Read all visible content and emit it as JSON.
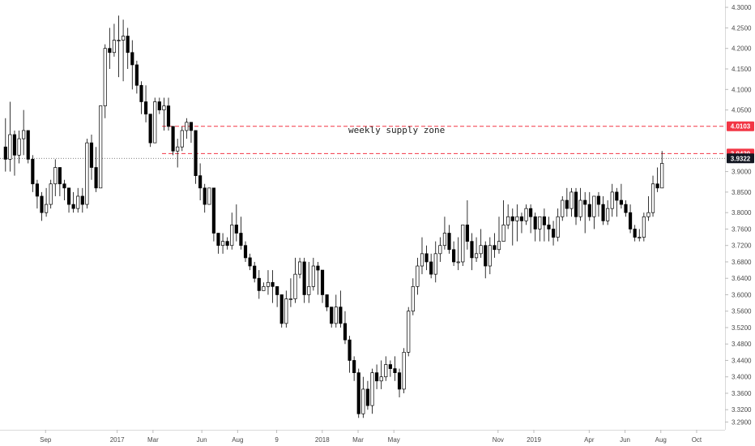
{
  "chart_data": {
    "type": "candlestick",
    "annotation": "weekly supply zone",
    "x_ticks": [
      "Sep",
      "2017",
      "Mar",
      "Jun",
      "Aug",
      "9",
      "2018",
      "Mar",
      "May",
      "Nov",
      "2019",
      "Apr",
      "Jun",
      "Aug",
      "Oct"
    ],
    "y_ticks": [
      "4.3000",
      "4.2500",
      "4.2000",
      "4.1500",
      "4.1000",
      "4.0500",
      "3.9000",
      "3.8500",
      "3.8000",
      "3.7600",
      "3.7200",
      "3.6800",
      "3.6400",
      "3.6000",
      "3.5600",
      "3.5200",
      "3.4800",
      "3.4400",
      "3.4000",
      "3.3600",
      "3.3200",
      "3.2900"
    ],
    "ylim": [
      3.275,
      4.31
    ],
    "zone_top": 4.0103,
    "zone_bottom": 3.9439,
    "last_price": 3.9322,
    "price_tags": [
      {
        "label": "4.0103",
        "value": 4.0103,
        "color": "#f23645"
      },
      {
        "label": "3.9439",
        "value": 3.9439,
        "color": "#f23645"
      },
      {
        "label": "3.9322",
        "value": 3.9322,
        "color": "#131722"
      }
    ],
    "bull_color": "#ffffff",
    "bear_color": "#000000",
    "grid": false,
    "candles": [
      [
        3.96,
        3.93,
        4.03,
        3.9
      ],
      [
        3.93,
        3.99,
        4.07,
        3.9
      ],
      [
        3.99,
        3.94,
        4.0,
        3.89
      ],
      [
        3.94,
        3.98,
        4.0,
        3.92
      ],
      [
        3.98,
        4.0,
        4.05,
        3.94
      ],
      [
        4.0,
        3.93,
        4.0,
        3.92
      ],
      [
        3.93,
        3.87,
        3.94,
        3.85
      ],
      [
        3.87,
        3.84,
        3.88,
        3.81
      ],
      [
        3.84,
        3.8,
        3.85,
        3.78
      ],
      [
        3.8,
        3.82,
        3.86,
        3.79
      ],
      [
        3.82,
        3.87,
        3.88,
        3.81
      ],
      [
        3.87,
        3.91,
        3.93,
        3.84
      ],
      [
        3.91,
        3.87,
        3.91,
        3.84
      ],
      [
        3.87,
        3.86,
        3.88,
        3.83
      ],
      [
        3.86,
        3.82,
        3.86,
        3.8
      ],
      [
        3.82,
        3.81,
        3.85,
        3.8
      ],
      [
        3.81,
        3.84,
        3.86,
        3.8
      ],
      [
        3.84,
        3.82,
        3.86,
        3.8
      ],
      [
        3.82,
        3.97,
        3.98,
        3.81
      ],
      [
        3.97,
        3.91,
        3.99,
        3.88
      ],
      [
        3.91,
        3.86,
        3.96,
        3.85
      ],
      [
        3.86,
        4.06,
        4.06,
        3.86
      ],
      [
        4.06,
        4.2,
        4.21,
        4.03
      ],
      [
        4.2,
        4.19,
        4.25,
        4.15
      ],
      [
        4.19,
        4.22,
        4.26,
        4.18
      ],
      [
        4.22,
        4.22,
        4.28,
        4.13
      ],
      [
        4.22,
        4.23,
        4.27,
        4.12
      ],
      [
        4.23,
        4.19,
        4.25,
        4.15
      ],
      [
        4.19,
        4.16,
        4.22,
        4.1
      ],
      [
        4.16,
        4.11,
        4.17,
        4.09
      ],
      [
        4.11,
        4.07,
        4.12,
        4.04
      ],
      [
        4.07,
        4.04,
        4.11,
        4.02
      ],
      [
        4.04,
        3.97,
        4.04,
        3.96
      ],
      [
        3.97,
        4.07,
        4.08,
        3.97
      ],
      [
        4.07,
        4.05,
        4.08,
        4.04
      ],
      [
        4.05,
        4.06,
        4.08,
        4.0
      ],
      [
        4.06,
        4.01,
        4.08,
        4.0
      ],
      [
        4.01,
        3.95,
        4.01,
        3.94
      ],
      [
        3.95,
        3.96,
        3.98,
        3.91
      ],
      [
        3.96,
        4.0,
        4.01,
        3.95
      ],
      [
        4.0,
        4.02,
        4.03,
        3.98
      ],
      [
        4.02,
        4.0,
        4.02,
        3.97
      ],
      [
        4.0,
        3.89,
        4.0,
        3.87
      ],
      [
        3.89,
        3.86,
        3.92,
        3.83
      ],
      [
        3.86,
        3.82,
        3.87,
        3.8
      ],
      [
        3.82,
        3.86,
        3.86,
        3.82
      ],
      [
        3.86,
        3.75,
        3.86,
        3.73
      ],
      [
        3.75,
        3.72,
        3.75,
        3.7
      ],
      [
        3.72,
        3.73,
        3.75,
        3.7
      ],
      [
        3.73,
        3.72,
        3.74,
        3.71
      ],
      [
        3.72,
        3.77,
        3.8,
        3.71
      ],
      [
        3.77,
        3.75,
        3.82,
        3.73
      ],
      [
        3.75,
        3.72,
        3.79,
        3.71
      ],
      [
        3.72,
        3.69,
        3.73,
        3.68
      ],
      [
        3.69,
        3.67,
        3.7,
        3.66
      ],
      [
        3.67,
        3.64,
        3.68,
        3.63
      ],
      [
        3.64,
        3.61,
        3.66,
        3.59
      ],
      [
        3.61,
        3.62,
        3.63,
        3.61
      ],
      [
        3.62,
        3.63,
        3.66,
        3.6
      ],
      [
        3.63,
        3.62,
        3.66,
        3.58
      ],
      [
        3.62,
        3.6,
        3.62,
        3.57
      ],
      [
        3.6,
        3.53,
        3.6,
        3.52
      ],
      [
        3.53,
        3.59,
        3.61,
        3.52
      ],
      [
        3.59,
        3.59,
        3.64,
        3.57
      ],
      [
        3.59,
        3.65,
        3.69,
        3.58
      ],
      [
        3.65,
        3.68,
        3.69,
        3.64
      ],
      [
        3.68,
        3.6,
        3.69,
        3.58
      ],
      [
        3.6,
        3.62,
        3.68,
        3.58
      ],
      [
        3.62,
        3.67,
        3.69,
        3.61
      ],
      [
        3.67,
        3.66,
        3.68,
        3.6
      ],
      [
        3.66,
        3.6,
        3.66,
        3.58
      ],
      [
        3.6,
        3.57,
        3.6,
        3.56
      ],
      [
        3.57,
        3.53,
        3.57,
        3.52
      ],
      [
        3.53,
        3.57,
        3.6,
        3.52
      ],
      [
        3.57,
        3.53,
        3.61,
        3.52
      ],
      [
        3.53,
        3.49,
        3.56,
        3.48
      ],
      [
        3.49,
        3.44,
        3.5,
        3.41
      ],
      [
        3.44,
        3.41,
        3.45,
        3.39
      ],
      [
        3.41,
        3.31,
        3.42,
        3.3
      ],
      [
        3.31,
        3.37,
        3.4,
        3.3
      ],
      [
        3.37,
        3.33,
        3.39,
        3.32
      ],
      [
        3.33,
        3.41,
        3.42,
        3.31
      ],
      [
        3.41,
        3.39,
        3.43,
        3.37
      ],
      [
        3.39,
        3.4,
        3.44,
        3.37
      ],
      [
        3.4,
        3.43,
        3.45,
        3.39
      ],
      [
        3.43,
        3.42,
        3.44,
        3.4
      ],
      [
        3.42,
        3.41,
        3.45,
        3.39
      ],
      [
        3.41,
        3.37,
        3.42,
        3.35
      ],
      [
        3.37,
        3.46,
        3.47,
        3.36
      ],
      [
        3.46,
        3.56,
        3.57,
        3.45
      ],
      [
        3.56,
        3.62,
        3.64,
        3.55
      ],
      [
        3.62,
        3.67,
        3.69,
        3.6
      ],
      [
        3.67,
        3.7,
        3.74,
        3.65
      ],
      [
        3.7,
        3.68,
        3.72,
        3.66
      ],
      [
        3.68,
        3.65,
        3.7,
        3.64
      ],
      [
        3.65,
        3.7,
        3.73,
        3.63
      ],
      [
        3.7,
        3.72,
        3.74,
        3.68
      ],
      [
        3.72,
        3.75,
        3.79,
        3.71
      ],
      [
        3.75,
        3.71,
        3.77,
        3.7
      ],
      [
        3.71,
        3.68,
        3.73,
        3.67
      ],
      [
        3.68,
        3.68,
        3.74,
        3.66
      ],
      [
        3.68,
        3.77,
        3.77,
        3.67
      ],
      [
        3.77,
        3.73,
        3.83,
        3.71
      ],
      [
        3.73,
        3.69,
        3.75,
        3.66
      ],
      [
        3.69,
        3.7,
        3.74,
        3.68
      ],
      [
        3.7,
        3.72,
        3.76,
        3.69
      ],
      [
        3.72,
        3.67,
        3.73,
        3.64
      ],
      [
        3.67,
        3.72,
        3.74,
        3.65
      ],
      [
        3.72,
        3.71,
        3.75,
        3.69
      ],
      [
        3.71,
        3.73,
        3.79,
        3.7
      ],
      [
        3.73,
        3.77,
        3.83,
        3.73
      ],
      [
        3.77,
        3.79,
        3.82,
        3.76
      ],
      [
        3.79,
        3.78,
        3.81,
        3.72
      ],
      [
        3.78,
        3.79,
        3.82,
        3.73
      ],
      [
        3.79,
        3.78,
        3.8,
        3.75
      ],
      [
        3.78,
        3.81,
        3.82,
        3.77
      ],
      [
        3.81,
        3.79,
        3.82,
        3.75
      ],
      [
        3.79,
        3.76,
        3.8,
        3.73
      ],
      [
        3.76,
        3.79,
        3.79,
        3.73
      ],
      [
        3.79,
        3.77,
        3.81,
        3.73
      ],
      [
        3.77,
        3.76,
        3.79,
        3.73
      ],
      [
        3.76,
        3.74,
        3.78,
        3.72
      ],
      [
        3.74,
        3.79,
        3.81,
        3.73
      ],
      [
        3.79,
        3.83,
        3.84,
        3.78
      ],
      [
        3.83,
        3.81,
        3.86,
        3.79
      ],
      [
        3.81,
        3.85,
        3.86,
        3.79
      ],
      [
        3.85,
        3.79,
        3.86,
        3.77
      ],
      [
        3.79,
        3.83,
        3.86,
        3.78
      ],
      [
        3.83,
        3.82,
        3.85,
        3.75
      ],
      [
        3.82,
        3.79,
        3.85,
        3.78
      ],
      [
        3.79,
        3.84,
        3.84,
        3.76
      ],
      [
        3.84,
        3.82,
        3.85,
        3.79
      ],
      [
        3.82,
        3.78,
        3.84,
        3.77
      ],
      [
        3.78,
        3.81,
        3.83,
        3.77
      ],
      [
        3.81,
        3.85,
        3.87,
        3.79
      ],
      [
        3.85,
        3.83,
        3.86,
        3.79
      ],
      [
        3.83,
        3.82,
        3.87,
        3.81
      ],
      [
        3.82,
        3.8,
        3.83,
        3.79
      ],
      [
        3.8,
        3.76,
        3.82,
        3.75
      ],
      [
        3.76,
        3.74,
        3.77,
        3.73
      ],
      [
        3.74,
        3.74,
        3.76,
        3.73
      ],
      [
        3.74,
        3.79,
        3.8,
        3.73
      ],
      [
        3.79,
        3.8,
        3.84,
        3.78
      ],
      [
        3.8,
        3.87,
        3.89,
        3.79
      ],
      [
        3.87,
        3.86,
        3.91,
        3.85
      ],
      [
        3.86,
        3.92,
        3.95,
        3.86
      ]
    ]
  }
}
